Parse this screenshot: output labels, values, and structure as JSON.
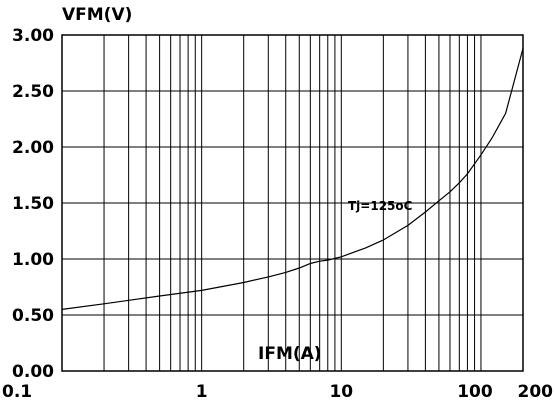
{
  "chart_data": {
    "type": "line",
    "title": "",
    "ylabel": "VFM(V)",
    "xlabel": "IFM(A)",
    "x_scale": "log",
    "xlim": [
      0.1,
      200
    ],
    "ylim": [
      0.0,
      3.0
    ],
    "grid": true,
    "x_ticks": [
      {
        "value": 0.1,
        "label": "0.1"
      },
      {
        "value": 1,
        "label": "1"
      },
      {
        "value": 10,
        "label": "10"
      },
      {
        "value": 100,
        "label": "100"
      },
      {
        "value": 200,
        "label": "200"
      }
    ],
    "y_ticks": [
      {
        "value": 0.0,
        "label": "0.00"
      },
      {
        "value": 0.5,
        "label": "0.50"
      },
      {
        "value": 1.0,
        "label": "1.00"
      },
      {
        "value": 1.5,
        "label": "1.50"
      },
      {
        "value": 2.0,
        "label": "2.00"
      },
      {
        "value": 2.5,
        "label": "2.50"
      },
      {
        "value": 3.0,
        "label": "3.00"
      }
    ],
    "series": [
      {
        "name": "Tj=125oC",
        "color": "#000000",
        "x": [
          0.1,
          0.2,
          0.5,
          1,
          2,
          3,
          4,
          5,
          6,
          7,
          8,
          10,
          15,
          20,
          30,
          40,
          50,
          60,
          70,
          80,
          100,
          120,
          150,
          200
        ],
        "y": [
          0.55,
          0.6,
          0.67,
          0.72,
          0.79,
          0.84,
          0.88,
          0.92,
          0.96,
          0.98,
          0.99,
          1.02,
          1.1,
          1.17,
          1.3,
          1.42,
          1.52,
          1.6,
          1.68,
          1.76,
          1.93,
          2.08,
          2.3,
          2.88
        ]
      }
    ]
  }
}
